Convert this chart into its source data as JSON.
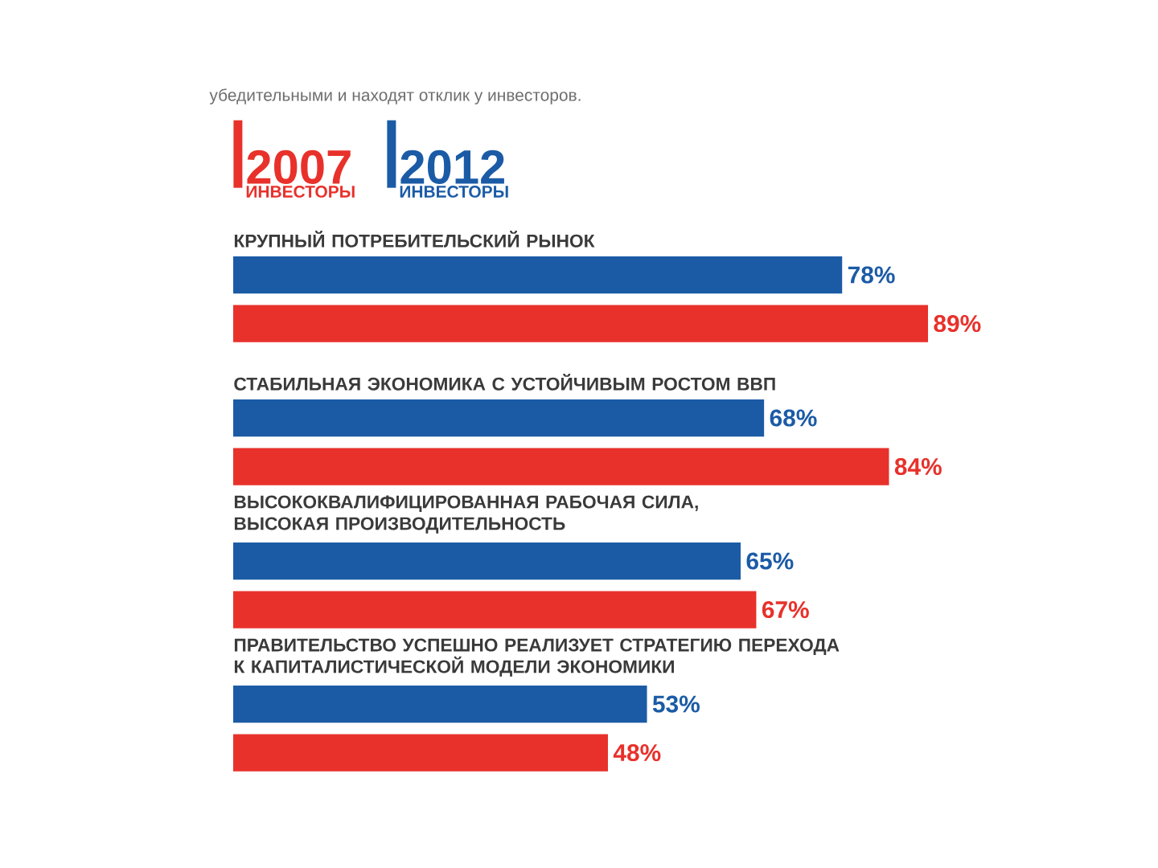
{
  "chart_data": {
    "type": "bar",
    "orientation": "horizontal",
    "annotations": [
      "убедительными и находят отклик у инвесторов."
    ],
    "categories": [
      "КРУПНЫЙ ПОТРЕБИТЕЛЬСКИЙ РЫНОК",
      "СТАБИЛЬНАЯ ЭКОНОМИКА С УСТОЙЧИВЫМ РОСТОМ ВВП",
      "ВЫСОКОКВАЛИФИЦИРОВАННАЯ РАБОЧАЯ СИЛА,\nВЫСОКАЯ ПРОИЗВОДИТЕЛЬНОСТЬ",
      "ПРАВИТЕЛЬСТВО УСПЕШНО РЕАЛИЗУЕТ СТРАТЕГИЮ ПЕРЕХОДА\nК КАПИТАЛИСТИЧЕСКОЙ МОДЕЛИ ЭКОНОМИКИ"
    ],
    "series": [
      {
        "name": "2007\nИНВЕСТОРЫ",
        "color": "#e8312b",
        "values": [
          89,
          84,
          67,
          48
        ],
        "value_labels": [
          "89%",
          "84%",
          "67%",
          "48%"
        ]
      },
      {
        "name": "2012\nИНВЕСТОРЫ",
        "color": "#1b5ba6",
        "values": [
          78,
          68,
          65,
          53
        ],
        "value_labels": [
          "78%",
          "68%",
          "65%",
          "53%"
        ]
      }
    ],
    "xlim": [
      0,
      89
    ],
    "legend": "top left"
  }
}
